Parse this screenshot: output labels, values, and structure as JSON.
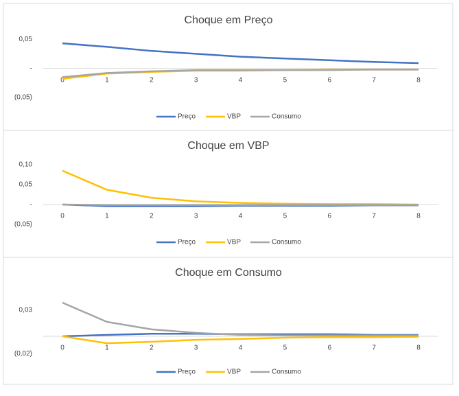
{
  "chart_data": [
    {
      "type": "line",
      "title": "Choque em Preço",
      "categories": [
        "0",
        "1",
        "2",
        "3",
        "4",
        "5",
        "6",
        "7",
        "8"
      ],
      "ylim": [
        -0.065,
        0.065
      ],
      "yticks": [
        {
          "value": 0.05,
          "label": "0,05"
        },
        {
          "value": 0,
          "label": "-"
        },
        {
          "value": -0.05,
          "label": "(0,05)"
        }
      ],
      "series": [
        {
          "name": "Preço",
          "color": "#4472c4",
          "values": [
            0.043,
            0.037,
            0.03,
            0.025,
            0.02,
            0.017,
            0.014,
            0.011,
            0.009
          ]
        },
        {
          "name": "VBP",
          "color": "#ffc000",
          "values": [
            -0.018,
            -0.009,
            -0.006,
            -0.004,
            -0.004,
            -0.003,
            -0.002,
            -0.002,
            -0.002
          ]
        },
        {
          "name": "Consumo",
          "color": "#a5a5a5",
          "values": [
            -0.015,
            -0.008,
            -0.005,
            -0.003,
            -0.003,
            -0.003,
            -0.003,
            -0.002,
            -0.002
          ]
        }
      ]
    },
    {
      "type": "line",
      "title": "Choque em VBP",
      "categories": [
        "0",
        "1",
        "2",
        "3",
        "4",
        "5",
        "6",
        "7",
        "8"
      ],
      "ylim": [
        -0.07,
        0.12
      ],
      "yticks": [
        {
          "value": 0.1,
          "label": "0,10"
        },
        {
          "value": 0.05,
          "label": "0,05"
        },
        {
          "value": 0,
          "label": "-"
        },
        {
          "value": -0.05,
          "label": "(0,05)"
        }
      ],
      "series": [
        {
          "name": "Preço",
          "color": "#4472c4",
          "values": [
            0,
            -0.004,
            -0.004,
            -0.004,
            -0.003,
            -0.003,
            -0.003,
            -0.002,
            -0.002
          ]
        },
        {
          "name": "VBP",
          "color": "#ffc000",
          "values": [
            0.085,
            0.037,
            0.017,
            0.008,
            0.004,
            0.002,
            0.001,
            0.001,
            0.0
          ]
        },
        {
          "name": "Consumo",
          "color": "#a5a5a5",
          "values": [
            0,
            -0.001,
            -0.001,
            -0.001,
            -0.001,
            -0.001,
            -0.001,
            -0.001,
            -0.001
          ]
        }
      ]
    },
    {
      "type": "line",
      "title": "Choque em Consumo",
      "categories": [
        "0",
        "1",
        "2",
        "3",
        "4",
        "5",
        "6",
        "7",
        "8"
      ],
      "ylim": [
        -0.025,
        0.045
      ],
      "yticks": [
        {
          "value": 0.03,
          "label": "0,03"
        },
        {
          "value": -0.02,
          "label": "(0,02)"
        }
      ],
      "series": [
        {
          "name": "Preço",
          "color": "#4472c4",
          "values": [
            0,
            0.0016,
            0.003,
            0.003,
            0.0024,
            0.0024,
            0.0024,
            0.0016,
            0.0016
          ]
        },
        {
          "name": "VBP",
          "color": "#ffc000",
          "values": [
            0,
            -0.008,
            -0.0063,
            -0.004,
            -0.003,
            -0.0016,
            -0.001,
            -0.001,
            -0.0005
          ]
        },
        {
          "name": "Consumo",
          "color": "#a5a5a5",
          "values": [
            0.0387,
            0.0166,
            0.008,
            0.004,
            0.0016,
            0.001,
            0.001,
            0.001,
            0.001
          ]
        }
      ]
    }
  ]
}
